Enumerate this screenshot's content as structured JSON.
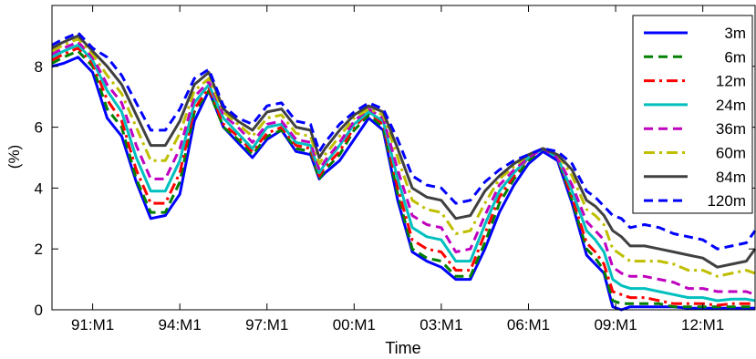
{
  "chart_data": {
    "type": "line",
    "title": "",
    "xlabel": "Time",
    "ylabel": "(%)",
    "xlim": [
      1989.6,
      2013.8
    ],
    "ylim": [
      0,
      10
    ],
    "yticks": [
      0,
      2,
      4,
      6,
      8
    ],
    "xticks": [
      {
        "x": 1991.0,
        "label": "91:M1"
      },
      {
        "x": 1994.0,
        "label": "94:M1"
      },
      {
        "x": 1997.0,
        "label": "97:M1"
      },
      {
        "x": 2000.0,
        "label": "00:M1"
      },
      {
        "x": 2003.0,
        "label": "03:M1"
      },
      {
        "x": 2006.0,
        "label": "06:M1"
      },
      {
        "x": 2009.0,
        "label": "09:M1"
      },
      {
        "x": 2012.0,
        "label": "12:M1"
      }
    ],
    "grid": false,
    "legend_position": "top-right",
    "x": [
      1989.6,
      1990.0,
      1990.5,
      1991.0,
      1991.5,
      1992.0,
      1992.5,
      1993.0,
      1993.5,
      1994.0,
      1994.5,
      1995.0,
      1995.5,
      1996.0,
      1996.5,
      1997.0,
      1997.5,
      1998.0,
      1998.5,
      1998.8,
      1999.0,
      1999.5,
      2000.0,
      2000.5,
      2001.0,
      2001.5,
      2002.0,
      2002.5,
      2003.0,
      2003.5,
      2004.0,
      2004.5,
      2005.0,
      2005.5,
      2006.0,
      2006.5,
      2007.0,
      2007.5,
      2008.0,
      2008.3,
      2008.6,
      2008.9,
      2009.2,
      2009.5,
      2010.0,
      2010.5,
      2011.0,
      2011.5,
      2012.0,
      2012.5,
      2013.0,
      2013.5,
      2013.8
    ],
    "series": [
      {
        "name": "3m",
        "color": "#0000ff",
        "dash": "solid",
        "values": [
          8.0,
          8.1,
          8.3,
          7.8,
          6.3,
          5.7,
          4.2,
          3.0,
          3.1,
          3.8,
          6.2,
          7.2,
          6.0,
          5.5,
          5.0,
          5.6,
          5.9,
          5.2,
          5.1,
          4.3,
          4.5,
          4.9,
          5.6,
          6.3,
          5.9,
          3.6,
          1.9,
          1.6,
          1.4,
          1.0,
          1.0,
          2.0,
          3.2,
          4.1,
          4.8,
          5.2,
          4.9,
          3.5,
          1.8,
          1.5,
          1.2,
          0.1,
          0.0,
          0.1,
          0.1,
          0.1,
          0.1,
          0.05,
          0.05,
          0.05,
          0.05,
          0.05,
          0.05
        ]
      },
      {
        "name": "6m",
        "color": "#008000",
        "dash": "dashed",
        "values": [
          8.1,
          8.3,
          8.5,
          8.0,
          6.6,
          6.0,
          4.3,
          3.2,
          3.2,
          4.2,
          6.5,
          7.2,
          6.0,
          5.6,
          5.1,
          5.7,
          5.9,
          5.3,
          5.2,
          4.3,
          4.6,
          5.1,
          5.9,
          6.4,
          6.0,
          3.8,
          2.0,
          1.7,
          1.6,
          1.1,
          1.1,
          2.2,
          3.5,
          4.3,
          4.9,
          5.3,
          5.0,
          3.6,
          2.0,
          1.7,
          1.3,
          0.3,
          0.2,
          0.2,
          0.2,
          0.2,
          0.1,
          0.1,
          0.1,
          0.1,
          0.1,
          0.1,
          0.1
        ]
      },
      {
        "name": "12m",
        "color": "#ff0000",
        "dash": "dashdot",
        "values": [
          8.2,
          8.4,
          8.6,
          8.1,
          6.9,
          6.2,
          4.6,
          3.5,
          3.5,
          4.5,
          6.6,
          7.3,
          6.1,
          5.7,
          5.2,
          5.8,
          6.0,
          5.4,
          5.3,
          4.4,
          4.7,
          5.2,
          6.0,
          6.5,
          6.1,
          4.0,
          2.3,
          2.0,
          1.9,
          1.3,
          1.3,
          2.5,
          3.7,
          4.4,
          5.0,
          5.3,
          5.0,
          3.7,
          2.2,
          1.9,
          1.5,
          0.6,
          0.5,
          0.4,
          0.4,
          0.3,
          0.2,
          0.2,
          0.2,
          0.15,
          0.2,
          0.2,
          0.2
        ]
      },
      {
        "name": "24m",
        "color": "#00bfbf",
        "dash": "solid",
        "values": [
          8.3,
          8.5,
          8.7,
          8.2,
          7.2,
          6.5,
          5.0,
          3.9,
          3.9,
          4.9,
          6.8,
          7.4,
          6.3,
          5.8,
          5.3,
          6.0,
          6.1,
          5.5,
          5.4,
          4.5,
          4.8,
          5.4,
          6.1,
          6.5,
          6.2,
          4.3,
          2.7,
          2.4,
          2.3,
          1.6,
          1.6,
          2.8,
          3.9,
          4.5,
          5.0,
          5.3,
          5.0,
          3.9,
          2.6,
          2.3,
          1.9,
          1.0,
          0.8,
          0.7,
          0.7,
          0.6,
          0.5,
          0.4,
          0.4,
          0.3,
          0.35,
          0.35,
          0.3
        ]
      },
      {
        "name": "36m",
        "color": "#bf00bf",
        "dash": "dashed",
        "values": [
          8.4,
          8.6,
          8.8,
          8.3,
          7.4,
          6.8,
          5.4,
          4.3,
          4.3,
          5.3,
          7.0,
          7.5,
          6.4,
          6.0,
          5.5,
          6.1,
          6.2,
          5.6,
          5.5,
          4.6,
          4.9,
          5.5,
          6.2,
          6.6,
          6.3,
          4.6,
          3.1,
          2.8,
          2.7,
          1.9,
          2.0,
          3.1,
          4.1,
          4.6,
          5.0,
          5.3,
          5.0,
          4.1,
          2.9,
          2.6,
          2.3,
          1.4,
          1.2,
          1.1,
          1.1,
          1.0,
          0.9,
          0.7,
          0.7,
          0.6,
          0.6,
          0.6,
          0.5
        ]
      },
      {
        "name": "60m",
        "color": "#bfbf00",
        "dash": "dashdot",
        "values": [
          8.5,
          8.7,
          8.9,
          8.4,
          7.7,
          7.1,
          6.0,
          4.9,
          4.9,
          5.8,
          7.2,
          7.6,
          6.5,
          6.1,
          5.7,
          6.3,
          6.4,
          5.8,
          5.7,
          4.8,
          5.1,
          5.7,
          6.3,
          6.6,
          6.4,
          5.0,
          3.6,
          3.3,
          3.2,
          2.5,
          2.6,
          3.5,
          4.3,
          4.7,
          5.1,
          5.3,
          5.1,
          4.4,
          3.3,
          3.1,
          2.8,
          2.0,
          1.8,
          1.6,
          1.6,
          1.6,
          1.5,
          1.3,
          1.3,
          1.1,
          1.2,
          1.3,
          1.2
        ]
      },
      {
        "name": "84m",
        "color": "#404040",
        "dash": "solid",
        "values": [
          8.6,
          8.8,
          9.0,
          8.5,
          8.0,
          7.4,
          6.4,
          5.4,
          5.4,
          6.2,
          7.4,
          7.8,
          6.6,
          6.2,
          5.9,
          6.5,
          6.6,
          6.0,
          5.9,
          5.0,
          5.3,
          5.9,
          6.4,
          6.7,
          6.5,
          5.3,
          4.0,
          3.7,
          3.6,
          3.0,
          3.1,
          3.9,
          4.4,
          4.8,
          5.1,
          5.3,
          5.1,
          4.6,
          3.6,
          3.4,
          3.1,
          2.6,
          2.4,
          2.1,
          2.1,
          2.0,
          1.9,
          1.8,
          1.7,
          1.4,
          1.5,
          1.6,
          2.0
        ]
      },
      {
        "name": "120m",
        "color": "#0000ff",
        "dash": "dashed",
        "values": [
          8.7,
          8.9,
          9.1,
          8.6,
          8.3,
          7.7,
          6.8,
          5.9,
          5.9,
          6.6,
          7.6,
          7.9,
          6.7,
          6.3,
          6.1,
          6.7,
          6.8,
          6.2,
          6.1,
          5.2,
          5.5,
          6.1,
          6.5,
          6.8,
          6.6,
          5.6,
          4.4,
          4.1,
          4.0,
          3.5,
          3.6,
          4.2,
          4.6,
          4.9,
          5.1,
          5.3,
          5.2,
          4.8,
          3.9,
          3.7,
          3.4,
          3.1,
          3.0,
          2.7,
          2.8,
          2.7,
          2.5,
          2.4,
          2.3,
          2.0,
          2.1,
          2.2,
          2.6
        ]
      }
    ]
  }
}
